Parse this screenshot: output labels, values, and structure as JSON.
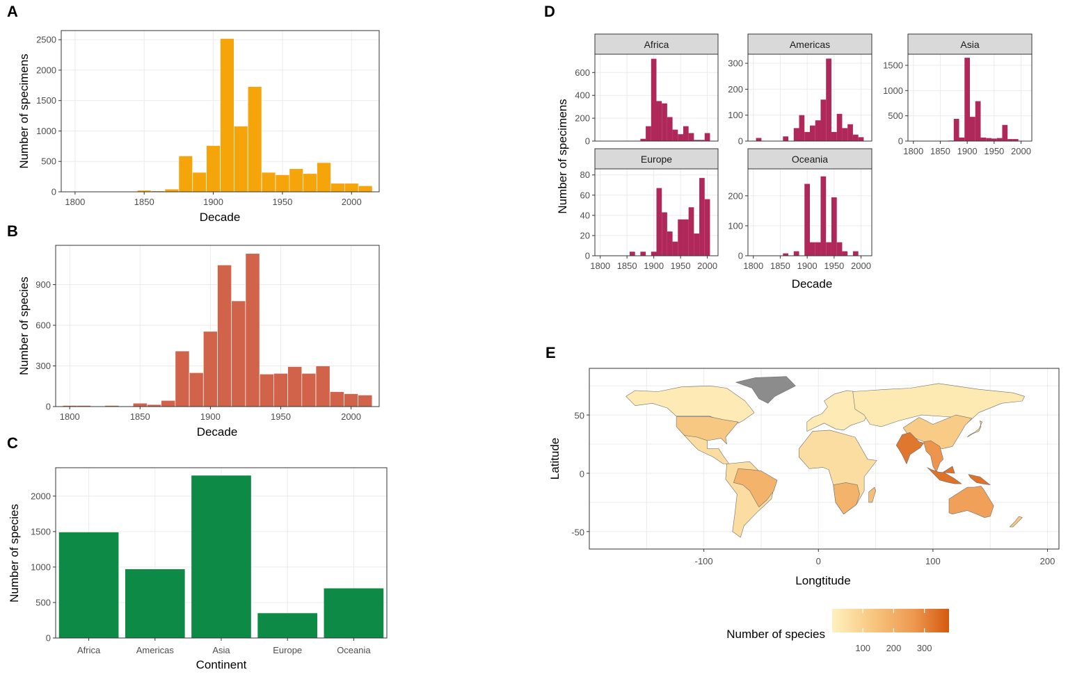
{
  "panels": {
    "A": {
      "label": "A",
      "chart_data": {
        "type": "bar",
        "xlabel": "Decade",
        "ylabel": "Number of specimens",
        "color": "#F5A50A",
        "xlim": [
          1790,
          2020
        ],
        "ylim": [
          0,
          2650
        ],
        "xticks": [
          1800,
          1850,
          1900,
          1950,
          2000
        ],
        "yticks": [
          0,
          500,
          1000,
          1500,
          2000,
          2500
        ],
        "x": [
          1800,
          1810,
          1820,
          1830,
          1840,
          1850,
          1860,
          1870,
          1880,
          1890,
          1900,
          1910,
          1920,
          1930,
          1940,
          1950,
          1960,
          1970,
          1980,
          1990,
          2000,
          2010
        ],
        "values": [
          5,
          5,
          0,
          5,
          0,
          25,
          15,
          45,
          590,
          320,
          760,
          2520,
          1080,
          1730,
          320,
          280,
          380,
          300,
          480,
          140,
          140,
          100
        ]
      }
    },
    "B": {
      "label": "B",
      "chart_data": {
        "type": "bar",
        "xlabel": "Decade",
        "ylabel": "Number of species",
        "color": "#D0634A",
        "xlim": [
          1790,
          2020
        ],
        "ylim": [
          0,
          1190
        ],
        "xticks": [
          1800,
          1850,
          1900,
          1950,
          2000
        ],
        "yticks": [
          0,
          300,
          600,
          900
        ],
        "x": [
          1800,
          1810,
          1820,
          1830,
          1840,
          1850,
          1860,
          1870,
          1880,
          1890,
          1900,
          1910,
          1920,
          1930,
          1940,
          1950,
          1960,
          1970,
          1980,
          1990,
          2000,
          2010
        ],
        "values": [
          8,
          8,
          0,
          8,
          0,
          25,
          15,
          45,
          410,
          250,
          555,
          1045,
          780,
          1130,
          240,
          245,
          295,
          245,
          300,
          110,
          95,
          85
        ]
      }
    },
    "C": {
      "label": "C",
      "chart_data": {
        "type": "bar",
        "xlabel": "Continent",
        "ylabel": "Number of species",
        "color": "#0D8A46",
        "ylim": [
          0,
          2400
        ],
        "yticks": [
          0,
          500,
          1000,
          1500,
          2000
        ],
        "categories": [
          "Africa",
          "Americas",
          "Asia",
          "Europe",
          "Oceania"
        ],
        "values": [
          1490,
          970,
          2290,
          350,
          700
        ]
      }
    },
    "D": {
      "label": "D",
      "chart_data": {
        "type": "bar",
        "xlabel": "Decade",
        "ylabel": "Number of specimens",
        "color": "#B0285A",
        "xlim": [
          1790,
          2020
        ],
        "xticks": [
          1800,
          1850,
          1900,
          1950,
          2000
        ],
        "xtick_labels": [
          "1800",
          "1850",
          "1900",
          "1950",
          "2000"
        ],
        "x": [
          1800,
          1810,
          1820,
          1830,
          1840,
          1850,
          1860,
          1870,
          1880,
          1890,
          1900,
          1910,
          1920,
          1930,
          1940,
          1950,
          1960,
          1970,
          1980,
          1990,
          2000,
          2010
        ],
        "facets": [
          {
            "name": "Africa",
            "ylim": [
              0,
              760
            ],
            "yticks": [
              0,
              200,
              400,
              600
            ],
            "values": [
              3,
              0,
              3,
              0,
              3,
              3,
              3,
              3,
              20,
              130,
              720,
              350,
              330,
              210,
              100,
              60,
              130,
              70,
              10,
              10,
              70,
              0
            ]
          },
          {
            "name": "Americas",
            "ylim": [
              0,
              335
            ],
            "yticks": [
              0,
              100,
              200,
              300
            ],
            "values": [
              0,
              12,
              0,
              0,
              0,
              0,
              18,
              0,
              50,
              100,
              35,
              60,
              80,
              160,
              318,
              35,
              105,
              50,
              65,
              25,
              15,
              0
            ]
          },
          {
            "name": "Asia",
            "ylim": [
              0,
              1720
            ],
            "yticks": [
              0,
              500,
              1000,
              1500
            ],
            "values": [
              5,
              5,
              0,
              5,
              0,
              5,
              5,
              10,
              440,
              70,
              1650,
              480,
              790,
              70,
              60,
              50,
              60,
              320,
              40,
              40,
              0,
              0
            ]
          },
          {
            "name": "Europe",
            "ylim": [
              0,
              86
            ],
            "yticks": [
              0,
              20,
              40,
              60,
              80
            ],
            "values": [
              0,
              0,
              0,
              0,
              0,
              0,
              4,
              0,
              4,
              0,
              4,
              67,
              43,
              24,
              14,
              36,
              36,
              48,
              22,
              77,
              56,
              0
            ]
          },
          {
            "name": "Oceania",
            "ylim": [
              0,
              290
            ],
            "yticks": [
              0,
              100,
              200
            ],
            "values": [
              0,
              0,
              0,
              0,
              0,
              0,
              8,
              0,
              15,
              0,
              240,
              45,
              45,
              265,
              45,
              195,
              45,
              15,
              0,
              15,
              0,
              0
            ]
          }
        ]
      }
    },
    "E": {
      "label": "E",
      "chart_data": {
        "type": "heatmap",
        "subtype": "choropleth-map",
        "xlabel": "Longtitude",
        "ylabel": "Latitude",
        "xlim": [
          -200,
          210
        ],
        "ylim": [
          -65,
          90
        ],
        "xticks": [
          -100,
          0,
          100,
          200
        ],
        "yticks": [
          -50,
          0,
          50
        ],
        "legend_title": "Number of species",
        "legend_ticks": [
          100,
          200,
          300
        ],
        "colorscale": [
          "#FFF1BF",
          "#F7C67F",
          "#EE9850",
          "#D4590F"
        ],
        "value_range": [
          0,
          380
        ],
        "regions": [
          {
            "name": "North America",
            "value": 20
          },
          {
            "name": "United States",
            "value": 120
          },
          {
            "name": "Mexico & Central America",
            "value": 60
          },
          {
            "name": "Brazil",
            "value": 180
          },
          {
            "name": "South America",
            "value": 60
          },
          {
            "name": "Greenland",
            "value": 0
          },
          {
            "name": "Europe",
            "value": 20
          },
          {
            "name": "Africa",
            "value": 60
          },
          {
            "name": "Southern Africa",
            "value": 180
          },
          {
            "name": "Russia & Central Asia",
            "value": 25
          },
          {
            "name": "China",
            "value": 110
          },
          {
            "name": "India",
            "value": 320
          },
          {
            "name": "Southeast Asia",
            "value": 260
          },
          {
            "name": "Indonesia",
            "value": 330
          },
          {
            "name": "New Guinea",
            "value": 330
          },
          {
            "name": "Australia",
            "value": 230
          },
          {
            "name": "Japan",
            "value": 120
          },
          {
            "name": "Madagascar",
            "value": 150
          },
          {
            "name": "New Zealand",
            "value": 120
          }
        ]
      }
    }
  }
}
